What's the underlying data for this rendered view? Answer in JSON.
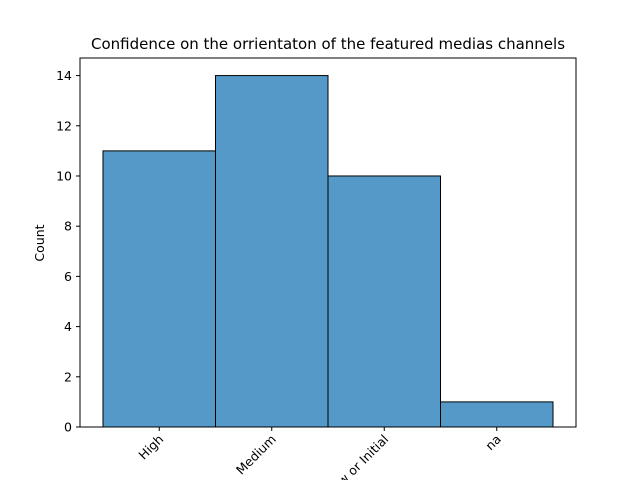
{
  "chart_data": {
    "type": "bar",
    "title": "Confidence on the orrientaton of the featured medias channels",
    "xlabel": "",
    "ylabel": "Count",
    "categories": [
      "High",
      "Medium",
      "Low or Initial",
      "na"
    ],
    "values": [
      11,
      14,
      10,
      1
    ],
    "ylim": [
      0,
      14.7
    ],
    "yticks": [
      0,
      2,
      4,
      6,
      8,
      10,
      12,
      14
    ],
    "grid": false,
    "legend": "none",
    "bar_color": "#5499c7",
    "edge_color": "#000000"
  }
}
